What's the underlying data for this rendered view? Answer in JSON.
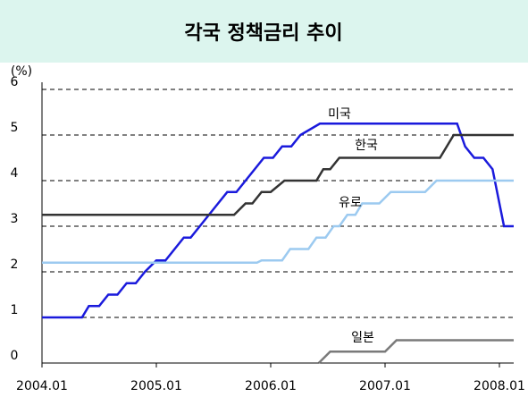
{
  "chart_data": {
    "type": "line",
    "title": "각국 정책금리 추이",
    "y_label": "(%)",
    "xlim": [
      2004.0,
      2008.125
    ],
    "ylim": [
      0,
      6
    ],
    "xticks": [
      {
        "value": 2004.0,
        "label": "2004.01"
      },
      {
        "value": 2005.0,
        "label": "2005.01"
      },
      {
        "value": 2006.0,
        "label": "2006.01"
      },
      {
        "value": 2007.0,
        "label": "2007.01"
      },
      {
        "value": 2008.0,
        "label": "2008.01"
      }
    ],
    "yticks": [
      0,
      1,
      2,
      3,
      4,
      5,
      6
    ],
    "grid": true,
    "series": [
      {
        "name": "미국",
        "color": "#1a1adc",
        "x": [
          2004.0,
          2004.35,
          2004.41,
          2004.5,
          2004.58,
          2004.66,
          2004.74,
          2004.82,
          2004.9,
          2005.0,
          2005.08,
          2005.16,
          2005.24,
          2005.3,
          2005.38,
          2005.46,
          2005.54,
          2005.62,
          2005.7,
          2005.78,
          2005.86,
          2005.94,
          2006.02,
          2006.1,
          2006.18,
          2006.26,
          2006.43,
          2007.63,
          2007.7,
          2007.78,
          2007.86,
          2007.94,
          2008.04,
          2008.125
        ],
        "values": [
          1.0,
          1.0,
          1.25,
          1.25,
          1.5,
          1.5,
          1.75,
          1.75,
          2.0,
          2.25,
          2.25,
          2.5,
          2.75,
          2.75,
          3.0,
          3.25,
          3.5,
          3.75,
          3.75,
          4.0,
          4.25,
          4.5,
          4.5,
          4.75,
          4.75,
          5.0,
          5.25,
          5.25,
          4.75,
          4.5,
          4.5,
          4.25,
          3.0,
          3.0
        ]
      },
      {
        "name": "한국",
        "color": "#333333",
        "x": [
          2004.0,
          2005.68,
          2005.78,
          2005.84,
          2005.92,
          2006.0,
          2006.12,
          2006.4,
          2006.46,
          2006.52,
          2006.6,
          2007.48,
          2007.6,
          2008.125
        ],
        "values": [
          3.25,
          3.25,
          3.5,
          3.5,
          3.75,
          3.75,
          4.0,
          4.0,
          4.25,
          4.25,
          4.5,
          4.5,
          5.0,
          5.0
        ]
      },
      {
        "name": "유로",
        "color": "#9ccaf0",
        "x": [
          2004.0,
          2005.88,
          2005.92,
          2006.1,
          2006.17,
          2006.33,
          2006.4,
          2006.48,
          2006.55,
          2006.6,
          2006.67,
          2006.74,
          2006.8,
          2006.95,
          2007.05,
          2007.35,
          2007.45,
          2008.125
        ],
        "values": [
          2.2,
          2.2,
          2.25,
          2.25,
          2.5,
          2.5,
          2.75,
          2.75,
          3.0,
          3.0,
          3.25,
          3.25,
          3.5,
          3.5,
          3.75,
          3.75,
          4.0,
          4.0
        ]
      },
      {
        "name": "일본",
        "color": "#7a7a7a",
        "x": [
          2006.42,
          2006.52,
          2007.0,
          2007.1,
          2008.125
        ],
        "values": [
          0,
          0.25,
          0.25,
          0.5,
          0.5
        ]
      }
    ]
  }
}
